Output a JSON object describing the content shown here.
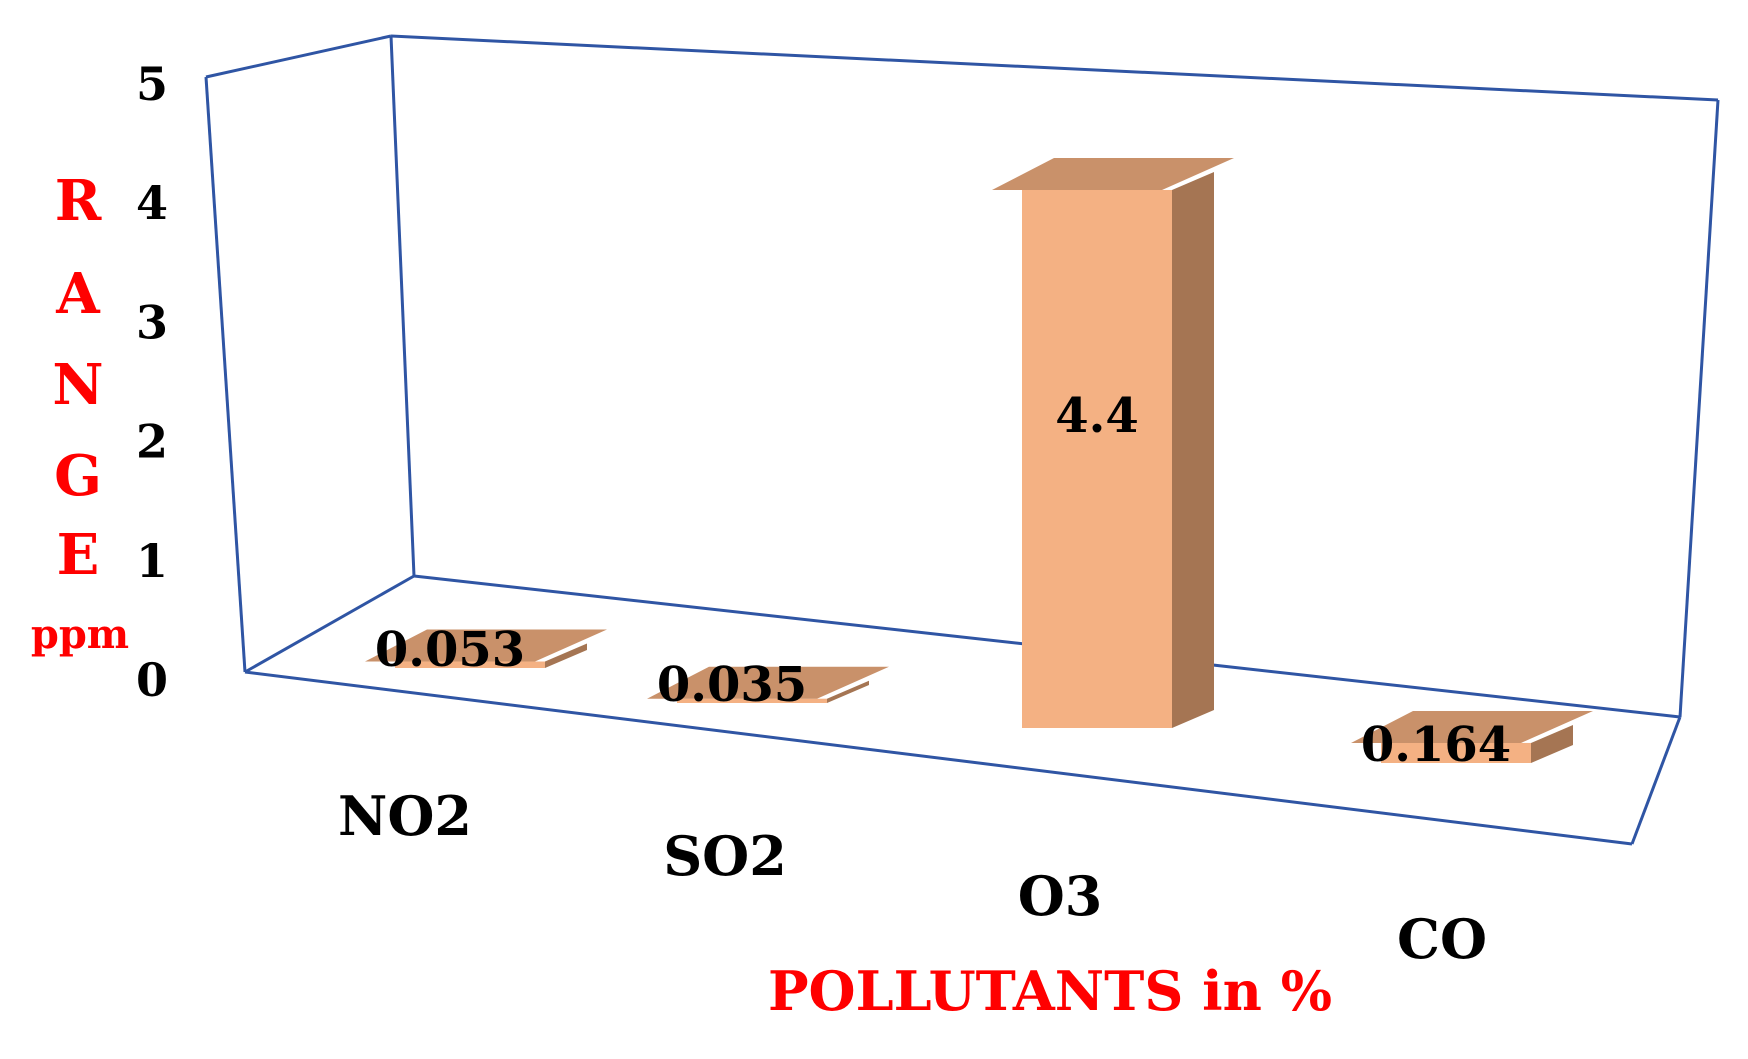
{
  "chart_data": {
    "type": "bar",
    "style": "3d",
    "categories": [
      "NO2",
      "SO2",
      "O3",
      "CO"
    ],
    "values": [
      0.053,
      0.035,
      4.4,
      0.164
    ],
    "value_labels": [
      "0.053",
      "0.035",
      "4.4",
      "0.164"
    ],
    "ylabel_letters": [
      "R",
      "A",
      "N",
      "G",
      "E"
    ],
    "ylabel_unit": "ppm",
    "xlabel": "POLLUTANTS in %",
    "ylim": [
      0,
      5
    ],
    "y_ticks": [
      "0",
      "1",
      "2",
      "3",
      "4",
      "5"
    ],
    "grid": false,
    "legend": "none"
  },
  "colors": {
    "bar_front": "#F4B183",
    "bar_top": "#C9916A",
    "bar_side": "#A57553",
    "frame": "#2F55A4",
    "label_red": "#FF0000",
    "text": "#000000"
  }
}
